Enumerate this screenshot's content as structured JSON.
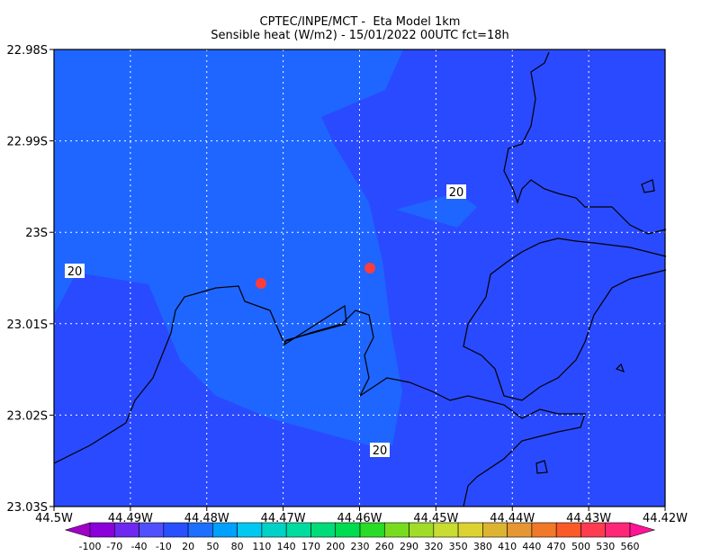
{
  "title": {
    "line1": "CPTEC/INPE/MCT -  Eta Model 1km",
    "line2": "Sensible heat (W/m2) - 15/01/2022 00UTC fct=18h"
  },
  "x_axis": {
    "labels": [
      "44.5W",
      "44.49W",
      "44.48W",
      "44.47W",
      "44.46W",
      "44.45W",
      "44.44W",
      "44.43W",
      "44.42W"
    ]
  },
  "y_axis": {
    "labels": [
      "22.98S",
      "22.99S",
      "23S",
      "23.01S",
      "23.02S",
      "23.03S"
    ]
  },
  "contour_labels": [
    "20",
    "20",
    "20"
  ],
  "colorbar": {
    "labels": [
      -100,
      -70,
      -40,
      -10,
      20,
      50,
      80,
      110,
      140,
      170,
      200,
      230,
      260,
      290,
      320,
      350,
      380,
      410,
      440,
      470,
      500,
      530,
      560
    ],
    "colors": [
      "#a000c8",
      "#8c00dc",
      "#6e28f0",
      "#5050ff",
      "#2850ff",
      "#1e6eff",
      "#00a0ff",
      "#00c8f0",
      "#00d2c8",
      "#00dca0",
      "#00dc78",
      "#00dc50",
      "#28dc28",
      "#78dc1e",
      "#a0dc28",
      "#c8dc32",
      "#dcd232",
      "#dcb432",
      "#e69632",
      "#f07828",
      "#fa5a28",
      "#ff3c50",
      "#ff2878",
      "#ff1496"
    ]
  }
}
